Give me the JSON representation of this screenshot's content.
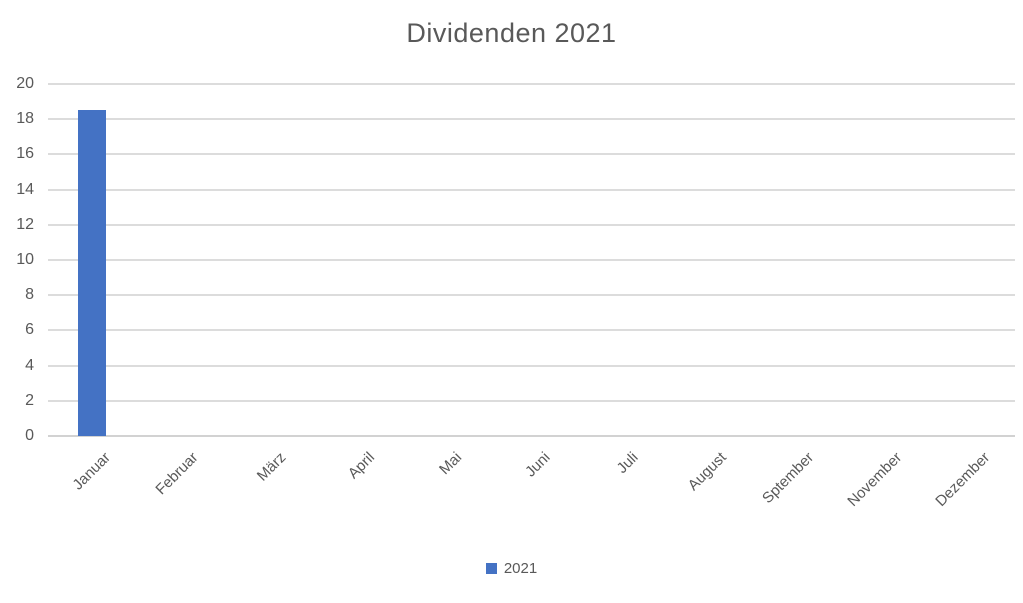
{
  "chart_data": {
    "type": "bar",
    "title": "Dividenden 2021",
    "categories": [
      "Januar",
      "Februar",
      "März",
      "April",
      "Mai",
      "Juni",
      "Juli",
      "August",
      "Sptember",
      "November",
      "Dezember"
    ],
    "series": [
      {
        "name": "2021",
        "values": [
          18.5,
          0,
          0,
          0,
          0,
          0,
          0,
          0,
          0,
          0,
          0
        ]
      }
    ],
    "xlabel": "",
    "ylabel": "",
    "ylim": [
      0,
      20
    ],
    "ytick_step": 2,
    "yticks": [
      0,
      2,
      4,
      6,
      8,
      10,
      12,
      14,
      16,
      18,
      20
    ],
    "grid": true,
    "legend_position": "bottom",
    "bar_color": "#4472C4",
    "text_color": "#595959",
    "grid_color": "#DCDCDC",
    "background_color": "#FFFFFF"
  }
}
